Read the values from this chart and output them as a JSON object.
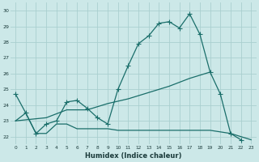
{
  "xlabel": "Humidex (Indice chaleur)",
  "bg_color": "#cce8e8",
  "grid_color": "#aacfcf",
  "line_color": "#1a6e6a",
  "xlim": [
    -0.5,
    23.5
  ],
  "ylim": [
    21.5,
    30.5
  ],
  "xticks": [
    0,
    1,
    2,
    3,
    4,
    5,
    6,
    7,
    8,
    9,
    10,
    11,
    12,
    13,
    14,
    15,
    16,
    17,
    18,
    19,
    20,
    21,
    22,
    23
  ],
  "yticks": [
    22,
    23,
    24,
    25,
    26,
    27,
    28,
    29,
    30
  ],
  "series1_x": [
    0,
    1,
    2,
    3,
    4,
    5,
    6,
    7,
    8,
    9,
    10,
    11,
    12,
    13,
    14,
    15,
    16,
    17,
    18,
    19,
    20,
    21,
    22
  ],
  "series1_y": [
    24.7,
    23.5,
    22.2,
    22.8,
    23.0,
    24.2,
    24.3,
    23.8,
    23.2,
    22.8,
    25.0,
    26.5,
    27.9,
    28.4,
    29.2,
    29.3,
    28.9,
    29.8,
    28.5,
    26.1,
    24.7,
    22.2,
    21.8
  ],
  "series2_x": [
    0,
    1,
    2,
    3,
    4,
    5,
    6,
    7,
    8,
    9,
    10,
    11,
    12,
    13,
    14,
    15,
    16,
    17,
    18,
    19,
    20,
    21,
    22,
    23
  ],
  "series2_y": [
    23.0,
    23.5,
    22.2,
    22.2,
    22.8,
    22.8,
    22.5,
    22.5,
    22.5,
    22.5,
    22.4,
    22.4,
    22.4,
    22.4,
    22.4,
    22.4,
    22.4,
    22.4,
    22.4,
    22.4,
    22.3,
    22.2,
    22.0,
    21.8
  ],
  "series3_x": [
    0,
    3,
    5,
    7,
    9,
    11,
    13,
    15,
    17,
    19
  ],
  "series3_y": [
    23.0,
    23.2,
    23.7,
    23.7,
    24.1,
    24.4,
    24.8,
    25.2,
    25.7,
    26.1
  ]
}
